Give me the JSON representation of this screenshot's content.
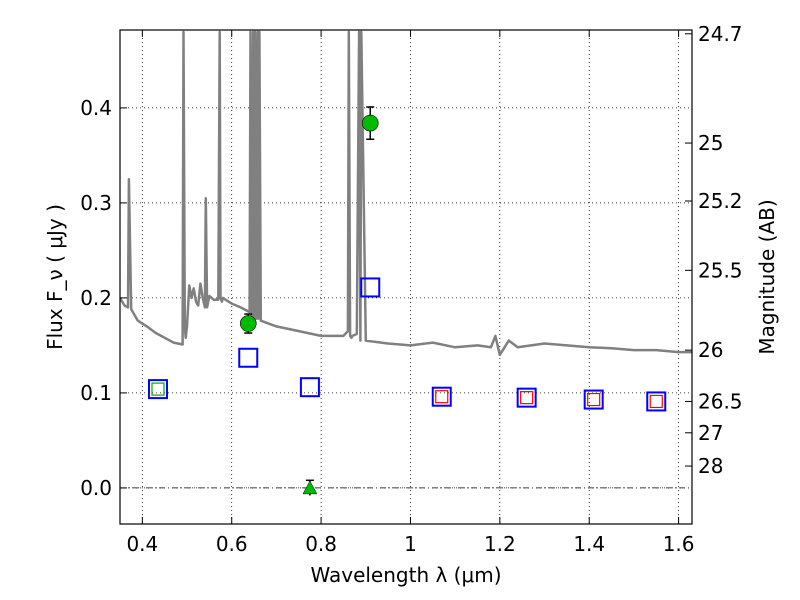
{
  "chart_data": {
    "type": "scatter",
    "xlabel": "Wavelength  λ (μm)",
    "ylabel": "Flux  F_ν  ( μJy )",
    "ylabel_right": "Magnitude (AB)",
    "xlim": [
      0.35,
      1.63
    ],
    "ylim": [
      -0.038,
      0.482
    ],
    "grid": true,
    "x_ticks": [
      0.4,
      0.6,
      0.8,
      1.0,
      1.2,
      1.4,
      1.6
    ],
    "x_tick_labels": [
      "0.4",
      "0.6",
      "0.8",
      "1",
      "1.2",
      "1.4",
      "1.6"
    ],
    "y_ticks": [
      0.0,
      0.1,
      0.2,
      0.3,
      0.4
    ],
    "y_tick_labels": [
      "0.0",
      "0.1",
      "0.2",
      "0.3",
      "0.4"
    ],
    "right_ticks": [
      {
        "flux": 0.478,
        "label": "24.7"
      },
      {
        "flux": 0.363,
        "label": "25"
      },
      {
        "flux": 0.302,
        "label": "25.2"
      },
      {
        "flux": 0.229,
        "label": "25.5"
      },
      {
        "flux": 0.145,
        "label": "26"
      },
      {
        "flux": 0.091,
        "label": "26.5"
      },
      {
        "flux": 0.058,
        "label": "27"
      },
      {
        "flux": 0.023,
        "label": "28"
      }
    ],
    "dashdot_line_y": 0.0,
    "spectrum": {
      "color": "#808080",
      "x": [
        0.35,
        0.36,
        0.368,
        0.37,
        0.375,
        0.39,
        0.41,
        0.43,
        0.45,
        0.47,
        0.49,
        0.492,
        0.495,
        0.497,
        0.5,
        0.505,
        0.51,
        0.515,
        0.52,
        0.525,
        0.53,
        0.535,
        0.54,
        0.542,
        0.545,
        0.55,
        0.56,
        0.57,
        0.573,
        0.575,
        0.578,
        0.58,
        0.6,
        0.62,
        0.64,
        0.642,
        0.645,
        0.648,
        0.65,
        0.652,
        0.655,
        0.658,
        0.66,
        0.662,
        0.665,
        0.7,
        0.75,
        0.8,
        0.85,
        0.86,
        0.862,
        0.865,
        0.868,
        0.87,
        0.88,
        0.885,
        0.888,
        0.89,
        0.9,
        0.95,
        1.0,
        1.05,
        1.1,
        1.15,
        1.18,
        1.19,
        1.2,
        1.22,
        1.24,
        1.3,
        1.35,
        1.4,
        1.45,
        1.5,
        1.55,
        1.6,
        1.63
      ],
      "y": [
        0.2,
        0.192,
        0.19,
        0.325,
        0.188,
        0.176,
        0.17,
        0.163,
        0.158,
        0.153,
        0.151,
        0.48,
        0.17,
        0.158,
        0.17,
        0.213,
        0.2,
        0.21,
        0.196,
        0.192,
        0.215,
        0.2,
        0.19,
        0.305,
        0.19,
        0.202,
        0.198,
        0.198,
        0.48,
        0.2,
        0.196,
        0.2,
        0.194,
        0.19,
        0.185,
        0.48,
        0.178,
        0.48,
        0.18,
        0.48,
        0.178,
        0.48,
        0.178,
        0.48,
        0.176,
        0.17,
        0.165,
        0.16,
        0.16,
        0.165,
        0.48,
        0.16,
        0.158,
        0.16,
        0.162,
        0.48,
        0.155,
        0.48,
        0.155,
        0.152,
        0.15,
        0.153,
        0.148,
        0.15,
        0.148,
        0.16,
        0.14,
        0.155,
        0.148,
        0.152,
        0.15,
        0.148,
        0.147,
        0.145,
        0.145,
        0.143,
        0.143
      ]
    },
    "series_blue_squares": {
      "color": "#0000ff",
      "x": [
        0.435,
        0.637,
        0.775,
        0.91,
        1.07,
        1.26,
        1.41,
        1.55
      ],
      "y": [
        0.104,
        0.137,
        0.106,
        0.211,
        0.096,
        0.095,
        0.093,
        0.091
      ]
    },
    "series_red_squares": {
      "color": "#ff0000",
      "x": [
        1.07,
        1.26,
        1.41,
        1.55
      ],
      "y": [
        0.096,
        0.095,
        0.093,
        0.091
      ]
    },
    "series_green_square": {
      "color": "#00aa00",
      "x": [
        0.435
      ],
      "y": [
        0.104
      ]
    },
    "series_green_points": {
      "color": "#00bb00",
      "x": [
        0.637,
        0.91
      ],
      "y": [
        0.173,
        0.384
      ],
      "err": [
        0.01,
        0.017
      ]
    },
    "series_green_upper_limit": {
      "color": "#00bb00",
      "x": [
        0.775
      ],
      "y": [
        0.0
      ],
      "err": [
        0.008
      ]
    }
  }
}
